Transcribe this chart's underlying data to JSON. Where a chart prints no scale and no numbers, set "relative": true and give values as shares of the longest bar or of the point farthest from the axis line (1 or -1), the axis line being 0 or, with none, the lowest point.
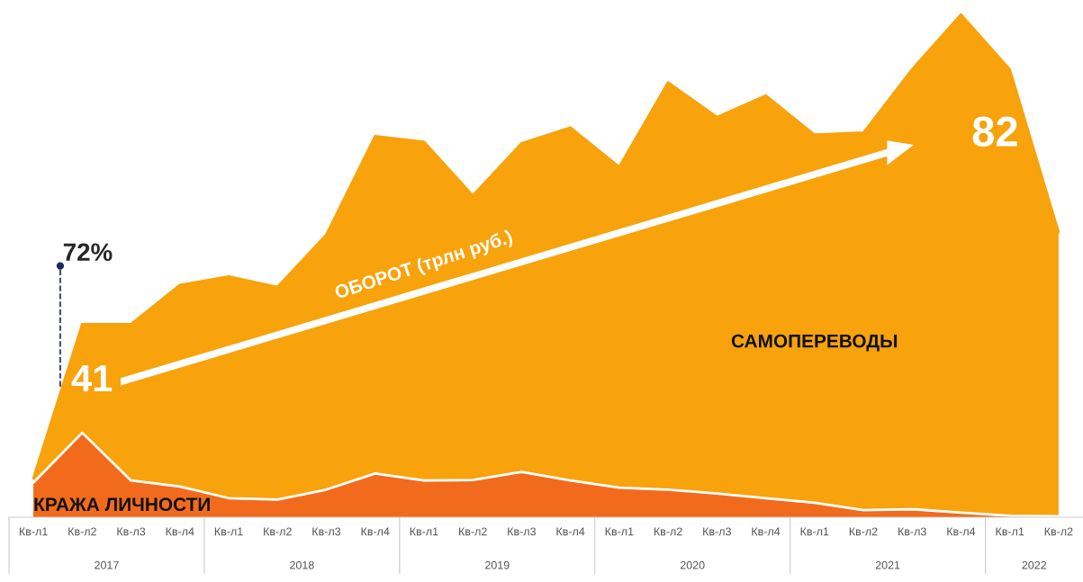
{
  "chart_data": {
    "type": "area",
    "relative": true,
    "categories": [
      "Кв-л1",
      "Кв-л2",
      "Кв-л3",
      "Кв-л4",
      "Кв-л1",
      "Кв-л2",
      "Кв-л3",
      "Кв-л4",
      "Кв-л1",
      "Кв-л2",
      "Кв-л3",
      "Кв-л4",
      "Кв-л1",
      "Кв-л2",
      "Кв-л3",
      "Кв-л4",
      "Кв-л1",
      "Кв-л2",
      "Кв-л3",
      "Кв-л4",
      "Кв-л1",
      "Кв-л2"
    ],
    "series": [
      {
        "name": "САМОПЕРЕВОДЫ",
        "color": "#f8a20c",
        "values": [
          0.078,
          0.384,
          0.384,
          0.462,
          0.479,
          0.458,
          0.562,
          0.758,
          0.747,
          0.64,
          0.744,
          0.775,
          0.697,
          0.865,
          0.796,
          0.839,
          0.761,
          0.765,
          0.891,
          1,
          0.891,
          0.567
        ]
      },
      {
        "name": "КРАЖА ЛИЧНОСТИ",
        "color": "#f26b1d",
        "values": [
          0.069,
          0.168,
          0.073,
          0.061,
          0.038,
          0.035,
          0.055,
          0.087,
          0.073,
          0.074,
          0.09,
          0.073,
          0.059,
          0.055,
          0.047,
          0.038,
          0.029,
          0.014,
          0.016,
          0.009,
          0.003,
          0.002
        ]
      }
    ],
    "annotations": [
      "2017",
      "2018",
      "2019",
      "2020",
      "2021",
      "2022",
      "72%",
      "41",
      "82",
      "ОБОРОТ (трлн руб.)"
    ],
    "legend": false,
    "grid": false
  }
}
